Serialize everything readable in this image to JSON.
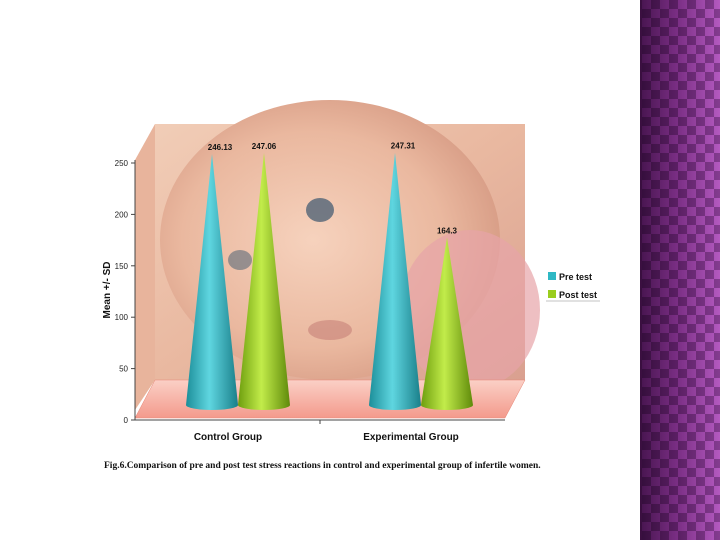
{
  "caption": "Fig.6.Comparison of pre and post test stress reactions in control and experimental group of infertile women.",
  "colors": {
    "pre_test": "#2fb8c4",
    "post_test": "#9acd1e",
    "sidebar": "#8a3a92",
    "floor": "#f7b0a6"
  },
  "chart_data": {
    "type": "bar",
    "title": "",
    "xlabel": "",
    "ylabel": "Mean +/- SD",
    "ylim": [
      0,
      250
    ],
    "yticks": [
      "0",
      "50",
      "100",
      "150",
      "200",
      "250"
    ],
    "categories": [
      "Control Group",
      "Experimental Group"
    ],
    "series": [
      {
        "name": "Pre test",
        "values": [
          246.13,
          247.31
        ],
        "labels": [
          "246.13",
          "247.31"
        ]
      },
      {
        "name": "Post test",
        "values": [
          247.06,
          164.3
        ],
        "labels": [
          "247.06",
          "164.3"
        ]
      }
    ],
    "legend": "right",
    "grid": false
  }
}
